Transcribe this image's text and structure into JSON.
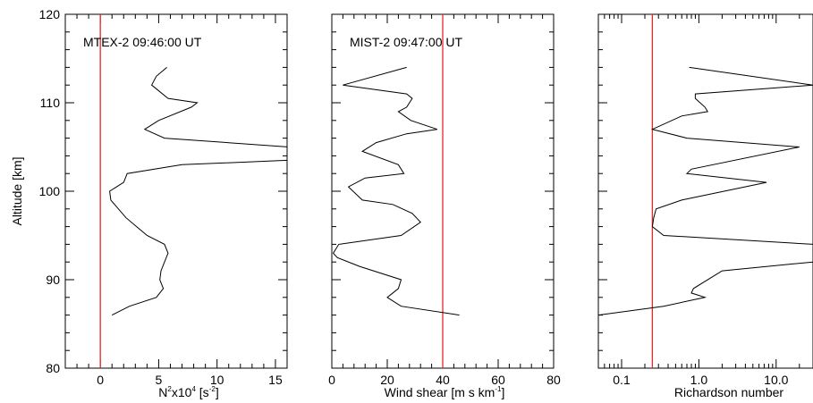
{
  "colors": {
    "profile": "#000000",
    "threshold": "#e8272a",
    "axis": "#000000"
  },
  "chart_data": [
    {
      "type": "line",
      "title": "MTEX-2 09:46:00 UT",
      "xlabel_main": "N",
      "xlabel_sup1": "2",
      "xlabel_mid": "x10",
      "xlabel_sup2": "4",
      "xlabel_unit": " [s",
      "xlabel_sup3": "-2",
      "xlabel_end": "]",
      "ylabel": "Altitude [km]",
      "xlim": [
        -3,
        16
      ],
      "ylim": [
        80,
        120
      ],
      "x_ticks": [
        0,
        5,
        10,
        15
      ],
      "x_tick_labels": [
        "0",
        "5",
        "10",
        "15"
      ],
      "y_ticks": [
        80,
        90,
        100,
        110,
        120
      ],
      "y_tick_labels": [
        "80",
        "90",
        "100",
        "110",
        "120"
      ],
      "threshold_x": 0,
      "series": [
        {
          "x": [
            1.0,
            2.5,
            4.8,
            5.4,
            5.1,
            5.2,
            5.8,
            5.5,
            4.0,
            2.2,
            0.9,
            0.8,
            2.0,
            2.3,
            7.0,
            16.2,
            16.2,
            5.5,
            3.8,
            5.0,
            7.8,
            8.3,
            5.8,
            4.4,
            4.8,
            5.7
          ],
          "y": [
            86.0,
            87.0,
            88.0,
            89.0,
            90.0,
            91.0,
            93.0,
            94.0,
            95.0,
            97.0,
            99.0,
            100.0,
            101.0,
            102.0,
            103.0,
            103.5,
            105.0,
            106.0,
            107.0,
            108.0,
            109.5,
            110.0,
            110.5,
            112.0,
            113.0,
            114.0
          ]
        }
      ]
    },
    {
      "type": "line",
      "title": "MIST-2 09:47:00 UT",
      "xlabel_main": "Wind shear [m s km",
      "xlabel_sup1": "-1",
      "xlabel_end": "]",
      "xlim": [
        0,
        80
      ],
      "ylim": [
        80,
        120
      ],
      "x_ticks": [
        0,
        20,
        40,
        60,
        80
      ],
      "x_tick_labels": [
        "0",
        "20",
        "40",
        "60",
        "80"
      ],
      "threshold_x": 40,
      "series": [
        {
          "x": [
            46.0,
            25.0,
            20.0,
            24.0,
            25.0,
            10.0,
            2.0,
            0.5,
            2.5,
            25.0,
            32.0,
            29.0,
            22.0,
            11.0,
            6.0,
            12.0,
            26.0,
            24.0,
            11.0,
            16.0,
            27.0,
            38.0,
            28.5,
            24.0,
            27.0,
            29.0,
            27.0,
            4.0,
            27.0
          ],
          "y": [
            86.0,
            87.0,
            88.0,
            89.0,
            90.0,
            91.5,
            92.5,
            93.0,
            94.0,
            95.0,
            96.5,
            97.5,
            98.5,
            99.0,
            100.5,
            101.5,
            102.0,
            103.0,
            104.5,
            105.5,
            106.5,
            107.0,
            108.0,
            109.0,
            109.5,
            110.5,
            111.0,
            112.0,
            114.0
          ]
        }
      ]
    },
    {
      "type": "line",
      "scale_x": "log",
      "xlabel_main": "Richardson number",
      "xlim": [
        0.05,
        30
      ],
      "ylim": [
        80,
        120
      ],
      "x_ticks": [
        0.1,
        1.0,
        10.0
      ],
      "x_tick_labels": [
        "0.1",
        "1.0",
        "10.0"
      ],
      "threshold_x": 0.25,
      "series": [
        {
          "x": [
            0.05,
            0.35,
            1.2,
            0.8,
            0.85,
            2.0,
            30.0,
            30.0,
            0.35,
            0.25,
            0.26,
            0.28,
            0.6,
            7.5,
            0.7,
            0.8,
            20.0,
            0.7,
            0.25,
            0.6,
            1.3,
            1.2,
            0.9,
            0.9,
            30.0,
            0.75
          ],
          "y": [
            86.0,
            87.0,
            88.0,
            88.5,
            89.0,
            91.0,
            92.0,
            94.0,
            95.0,
            96.0,
            97.0,
            98.0,
            99.0,
            101.0,
            102.0,
            102.5,
            105.0,
            106.0,
            107.0,
            108.5,
            109.0,
            109.5,
            110.5,
            111.0,
            112.0,
            114.0
          ]
        }
      ]
    }
  ]
}
